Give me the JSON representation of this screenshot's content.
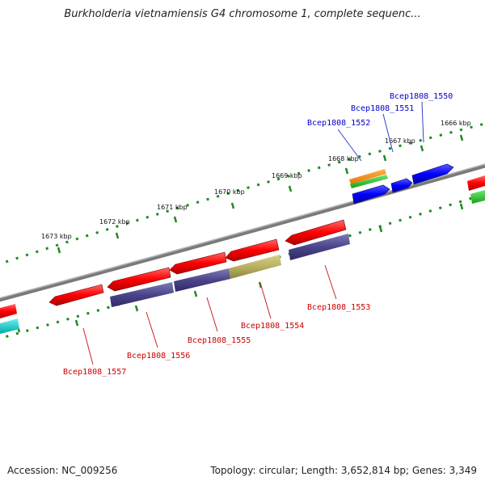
{
  "title": "Burkholderia vietnamiensis G4 chromosome 1, complete sequenc...",
  "footer": {
    "accession": "Accession: NC_009256",
    "summary": "Topology: circular; Length: 3,652,814 bp; Genes: 3,349"
  },
  "colors": {
    "backbone": "#808080",
    "tick_dots": "#1f8a1f",
    "forward_label": "#0000cc",
    "reverse_label": "#cc0000"
  },
  "kbp_ticks": [
    {
      "label": "1666 kbp"
    },
    {
      "label": "1667 kbp"
    },
    {
      "label": "1668 kbp"
    },
    {
      "label": "1669 kbp"
    },
    {
      "label": "1670 kbp"
    },
    {
      "label": "1671 kbp"
    },
    {
      "label": "1672 kbp"
    },
    {
      "label": "1673 kbp"
    }
  ],
  "forward_genes": [
    {
      "name": "Bcep1808_1550",
      "color": "#0000ee"
    },
    {
      "name": "Bcep1808_1551",
      "color": "#0000ee"
    },
    {
      "name": "Bcep1808_1552",
      "color": "#0000ee"
    }
  ],
  "reverse_genes": [
    {
      "name": "Bcep1808_1553",
      "color": "#ee0000"
    },
    {
      "name": "Bcep1808_1554",
      "color": "#ee0000"
    },
    {
      "name": "Bcep1808_1555",
      "color": "#ee0000"
    },
    {
      "name": "Bcep1808_1556",
      "color": "#ee0000"
    },
    {
      "name": "Bcep1808_1557",
      "color": "#ee0000"
    }
  ]
}
